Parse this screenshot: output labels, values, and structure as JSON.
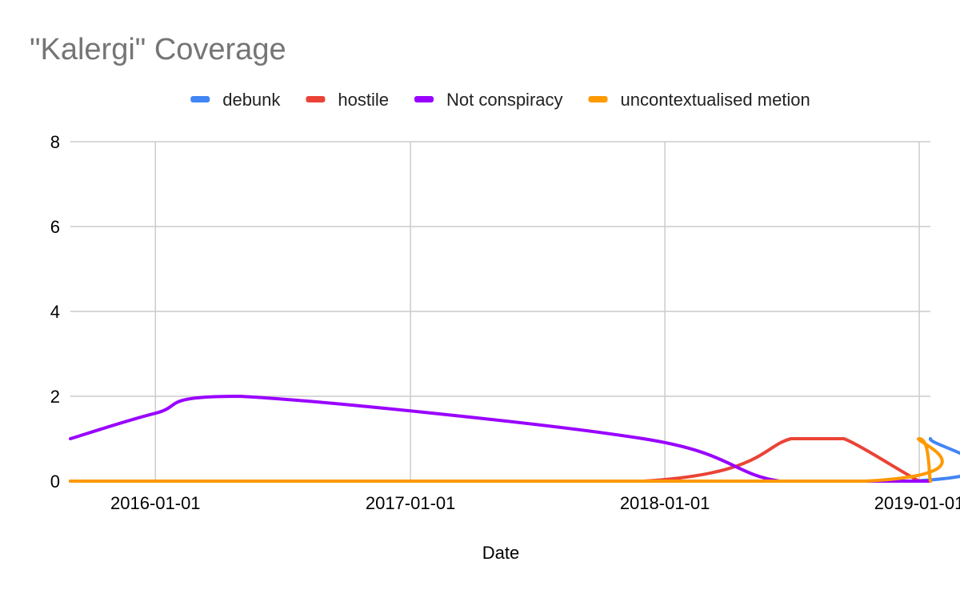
{
  "chart_data": {
    "type": "line",
    "title": "\"Kalergi\" Coverage",
    "xlabel": "Date",
    "ylabel": "",
    "ylim": [
      0,
      8
    ],
    "yticks": [
      0,
      2,
      4,
      6,
      8
    ],
    "xlim": [
      "2015-09-01",
      "2019-01-17"
    ],
    "xticks": [
      "2016-01-01",
      "2017-01-01",
      "2018-01-01",
      "2019-01-01"
    ],
    "grid": true,
    "legend_position": "top",
    "series": [
      {
        "name": "debunk",
        "color": "#4285f4",
        "points": [
          {
            "x": "2015-09-01",
            "y": 0
          },
          {
            "x": "2018-12-20",
            "y": 0
          },
          {
            "x": "2019-01-17",
            "y": 1
          }
        ]
      },
      {
        "name": "hostile",
        "color": "#ea4335",
        "points": [
          {
            "x": "2015-09-01",
            "y": 0
          },
          {
            "x": "2017-12-01",
            "y": 0
          },
          {
            "x": "2018-07-01",
            "y": 1
          },
          {
            "x": "2018-08-01",
            "y": 1
          },
          {
            "x": "2018-09-15",
            "y": 1
          },
          {
            "x": "2019-01-01",
            "y": 0
          },
          {
            "x": "2019-01-17",
            "y": 0
          }
        ]
      },
      {
        "name": "Not conspiracy",
        "color": "#9900ff",
        "points": [
          {
            "x": "2015-09-01",
            "y": 1
          },
          {
            "x": "2016-01-01",
            "y": 1.6
          },
          {
            "x": "2016-05-01",
            "y": 2
          },
          {
            "x": "2017-12-01",
            "y": 1
          },
          {
            "x": "2018-06-15",
            "y": 0
          },
          {
            "x": "2019-01-17",
            "y": 0
          }
        ]
      },
      {
        "name": "uncontextualised metion",
        "color": "#ff9900",
        "points": [
          {
            "x": "2015-09-01",
            "y": 0
          },
          {
            "x": "2018-10-15",
            "y": 0
          },
          {
            "x": "2019-01-01",
            "y": 1
          },
          {
            "x": "2019-01-17",
            "y": 0
          }
        ]
      }
    ]
  }
}
